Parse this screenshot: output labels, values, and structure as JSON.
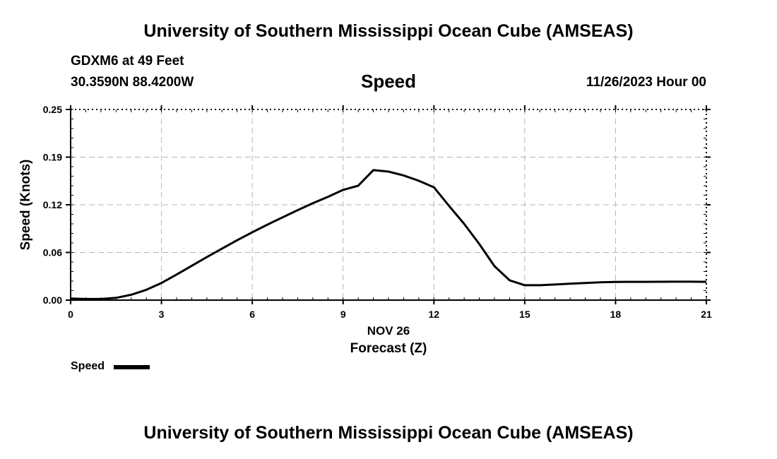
{
  "header": {
    "title": "University of Southern Mississippi Ocean Cube (AMSEAS)",
    "station": "GDXM6 at 49 Feet",
    "coords": "30.3590N  88.4200W",
    "datetime": "11/26/2023 Hour 00"
  },
  "footer": {
    "title": "University of Southern Mississippi Ocean Cube (AMSEAS)"
  },
  "chart_data": {
    "type": "line",
    "title": "Speed",
    "xlabel": "Forecast (Z)",
    "date_label": "NOV 26",
    "ylabel": "Speed (Knots)",
    "xlim": [
      0,
      21
    ],
    "ylim": [
      0,
      0.25
    ],
    "xticks": [
      0,
      3,
      6,
      9,
      12,
      15,
      18,
      21
    ],
    "xtick_labels": [
      "0",
      "3",
      "6",
      "9",
      "12",
      "15",
      "18",
      "21"
    ],
    "yticks": [
      0,
      0.0625,
      0.125,
      0.1875,
      0.25
    ],
    "ytick_labels": [
      "0.00",
      "0.06",
      "0.12",
      "0.19",
      "0.25"
    ],
    "grid": true,
    "legend": "bottom-left",
    "series": [
      {
        "name": "Speed",
        "color": "#000000",
        "x": [
          0,
          0.5,
          1,
          1.5,
          2,
          2.5,
          3,
          3.5,
          4,
          4.5,
          5,
          5.5,
          6,
          6.5,
          7,
          7.5,
          8,
          8.5,
          9,
          9.5,
          10,
          10.5,
          11,
          11.5,
          12,
          12.5,
          13,
          13.5,
          14,
          14.5,
          15,
          15.5,
          16,
          16.5,
          17,
          17.5,
          18,
          18.5,
          19,
          19.5,
          20,
          20.5,
          21
        ],
        "values": [
          0.002,
          0.0015,
          0.0015,
          0.003,
          0.007,
          0.0135,
          0.0225,
          0.0335,
          0.045,
          0.0565,
          0.0675,
          0.0785,
          0.089,
          0.099,
          0.1085,
          0.118,
          0.127,
          0.1355,
          0.1445,
          0.15,
          0.1705,
          0.1685,
          0.1635,
          0.1565,
          0.148,
          0.1235,
          0.1,
          0.0735,
          0.0445,
          0.026,
          0.0195,
          0.0195,
          0.0205,
          0.0215,
          0.0225,
          0.0233,
          0.0238,
          0.024,
          0.024,
          0.0241,
          0.0242,
          0.0242,
          0.024
        ]
      }
    ]
  }
}
